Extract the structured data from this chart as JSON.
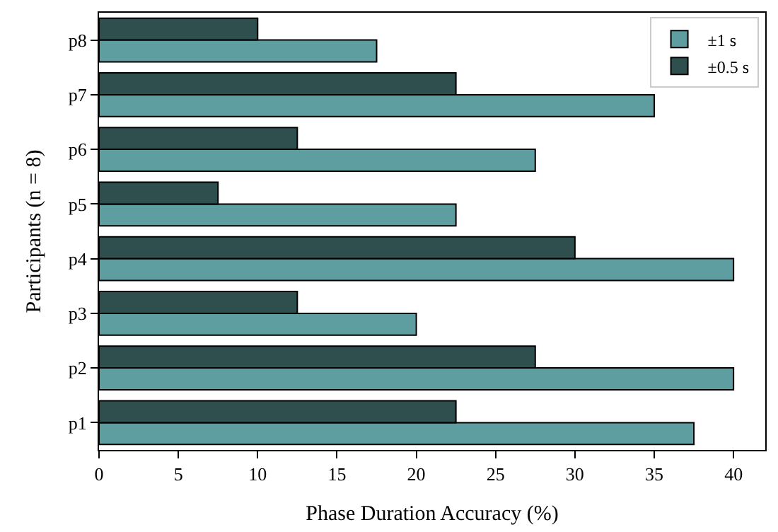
{
  "chart_data": {
    "type": "bar",
    "orientation": "horizontal",
    "xlabel": "Phase Duration Accuracy (%)",
    "ylabel": "Participants (n = 8)",
    "categories": [
      "p8",
      "p7",
      "p6",
      "p5",
      "p4",
      "p3",
      "p2",
      "p1"
    ],
    "series": [
      {
        "name": "±1 s",
        "color": "#5f9ea0",
        "values": [
          17.5,
          35,
          27.5,
          22.5,
          40,
          20,
          40,
          37.5
        ]
      },
      {
        "name": "±0.5 s",
        "color": "#2f4f4f",
        "values": [
          10,
          22.5,
          12.5,
          7.5,
          30,
          12.5,
          27.5,
          22.5
        ]
      }
    ],
    "xlim": [
      0,
      42
    ],
    "xticks": [
      0,
      5,
      10,
      15,
      20,
      25,
      30,
      35,
      40
    ],
    "legend": "top right"
  }
}
